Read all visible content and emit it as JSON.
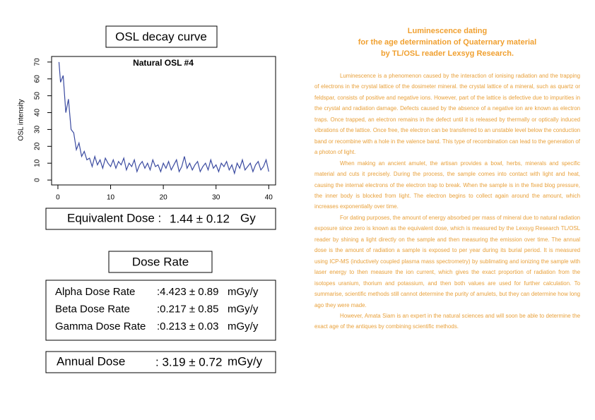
{
  "chart_data": {
    "type": "line",
    "title": "Natural OSL #4",
    "ylabel": "OSL intensity",
    "color": "#3a4aa0",
    "x": [
      0.2,
      0.5,
      1,
      1.5,
      2,
      2.5,
      3,
      3.5,
      4,
      4.5,
      5,
      5.5,
      6,
      6.5,
      7,
      7.5,
      8,
      8.5,
      9,
      9.5,
      10,
      10.5,
      11,
      11.5,
      12,
      12.5,
      13,
      13.5,
      14,
      14.5,
      15,
      15.5,
      16,
      16.5,
      17,
      17.5,
      18,
      18.5,
      19,
      19.5,
      20,
      20.5,
      21,
      21.5,
      22,
      22.5,
      23,
      23.5,
      24,
      24.5,
      25,
      25.5,
      26,
      26.5,
      27,
      27.5,
      28,
      28.5,
      29,
      29.5,
      30,
      30.5,
      31,
      31.5,
      32,
      32.5,
      33,
      33.5,
      34,
      34.5,
      35,
      35.5,
      36,
      36.5,
      37,
      37.5,
      38,
      38.5,
      39,
      39.5,
      40
    ],
    "values": [
      70,
      58,
      62,
      40,
      48,
      30,
      28,
      18,
      22,
      14,
      17,
      12,
      13,
      8,
      14,
      9,
      12,
      7,
      13,
      10,
      8,
      12,
      7,
      11,
      9,
      13,
      6,
      10,
      8,
      12,
      5,
      9,
      11,
      7,
      10,
      6,
      12,
      8,
      9,
      5,
      10,
      7,
      11,
      6,
      9,
      12,
      5,
      8,
      14,
      7,
      10,
      6,
      9,
      11,
      5,
      8,
      10,
      6,
      12,
      7,
      9,
      5,
      10,
      8,
      11,
      6,
      9,
      4,
      10,
      7,
      12,
      6,
      8,
      10,
      5,
      9,
      11,
      6,
      8,
      12,
      5
    ],
    "xlim": [
      -1.2,
      41.3
    ],
    "ylim": [
      -2.9,
      73.3
    ],
    "xticks": [
      0,
      10,
      20,
      30,
      40
    ],
    "yticks": [
      0,
      10,
      20,
      30,
      40,
      50,
      60,
      70
    ]
  },
  "osl_heading": "OSL decay curve",
  "equivalent_dose": {
    "label": "Equivalent Dose :",
    "value": "1.44 ± 0.12",
    "unit": "Gy"
  },
  "dose_rate_heading": "Dose Rate",
  "dose_rates": [
    {
      "label": "Alpha Dose Rate",
      "value": ":4.423 ± 0.89",
      "unit": "mGy/y"
    },
    {
      "label": "Beta Dose Rate",
      "value": ":0.217 ± 0.85",
      "unit": "mGy/y"
    },
    {
      "label": "Gamma Dose Rate",
      "value": ":0.213 ± 0.03",
      "unit": "mGy/y"
    }
  ],
  "annual_dose": {
    "label": "Annual Dose",
    "value": ": 3.19 ± 0.72",
    "unit": "mGy/y"
  },
  "article": {
    "heading": [
      "Luminescence dating",
      "for the age determination of Quaternary material",
      "by TL/OSL reader Lexsyg Research."
    ],
    "paragraphs": [
      "Luminescence is a phenomenon caused by the interaction of ionising radiation and the trapping of electrons in the crystal lattice of the dosimeter mineral. the crystal lattice of a mineral, such as quartz or feldspar, consists of positive and negative ions. However, part of the lattice is defective due to impurities in the crystal and radiation damage. Defects caused by the absence of a negative ion are known as electron traps. Once trapped, an electron remains in the defect until it is released by thermally or optically induced vibrations of the lattice. Once free, the electron can be transferred to an unstable level below the conduction band or recombine with a hole in the valence band. This type of recombination can lead to the generation of a photon of light.",
      "When making an ancient amulet, the artisan provides a bowl, herbs, minerals and specific material and cuts it precisely. During the process, the sample comes into contact with light and heat, causing the internal electrons of the electron trap to break. When the sample is in the fixed blog pressure, the inner body is blocked from light. The electron begins to collect again around the amount, which increases exponentially over time.",
      "For dating purposes, the amount of energy absorbed per mass of mineral due to natural radiation exposure since zero is known as the equivalent dose, which is measured by the Lexsyg Research TL/OSL reader by shining a light directly on the sample and then measuring the emission over time. The annual dose is the amount of radiation a sample is exposed to per year during its burial period. It is measured using ICP-MS (inductively coupled plasma mass spectrometry) by sublimating and ionizing the sample with laser energy to then measure the ion current, which gives the exact proportion of radiation from the isotopes uranium, thorium and potassium, and then both values are used for further calculation. To summarise, scientific methods still cannot determine the purity of amulets, but they can determine how long ago they were made.",
      "However, Amata Siam is an expert in the natural sciences and will soon be able to determine the exact age of the antiques by combining scientific methods."
    ]
  }
}
